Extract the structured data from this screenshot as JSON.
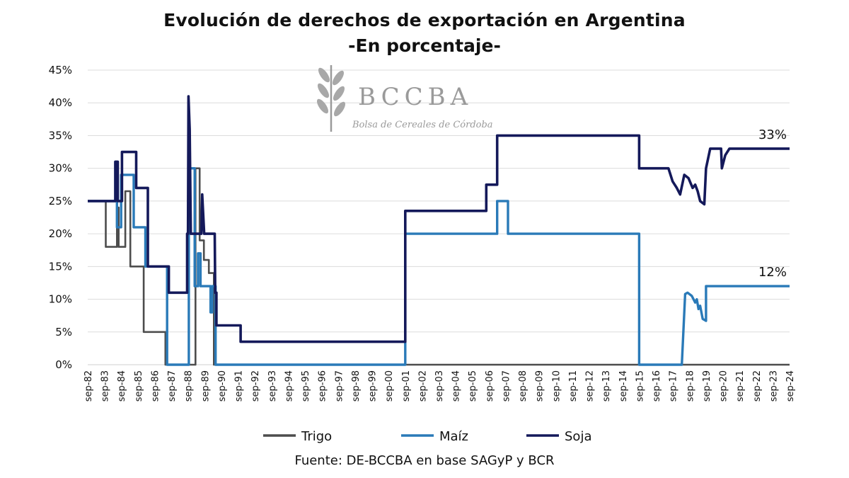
{
  "chart_data": {
    "type": "line",
    "title": "Evolución de derechos de exportación en Argentina",
    "subtitle": "-En porcentaje-",
    "source": "Fuente: DE-BCCBA en base SAGyP y BCR",
    "y_ticks": [
      "0%",
      "5%",
      "10%",
      "15%",
      "20%",
      "25%",
      "30%",
      "35%",
      "40%",
      "45%"
    ],
    "ylim": [
      0,
      45
    ],
    "xlim": [
      1982.75,
      2024.75
    ],
    "x_ticks": [
      "sep-82",
      "sep-83",
      "sep-84",
      "sep-85",
      "sep-86",
      "sep-87",
      "sep-88",
      "sep-89",
      "sep-90",
      "sep-91",
      "sep-92",
      "sep-93",
      "sep-94",
      "sep-95",
      "sep-96",
      "sep-97",
      "sep-98",
      "sep-99",
      "sep-00",
      "sep-01",
      "sep-02",
      "sep-03",
      "sep-04",
      "sep-05",
      "sep-06",
      "sep-07",
      "sep-08",
      "sep-09",
      "sep-10",
      "sep-11",
      "sep-12",
      "sep-13",
      "sep-14",
      "sep-15",
      "sep-16",
      "sep-17",
      "sep-18",
      "sep-19",
      "sep-20",
      "sep-21",
      "sep-22",
      "sep-23",
      "sep-24"
    ],
    "grid": true,
    "legend_position": "bottom",
    "annotations": [
      {
        "series": "Soja",
        "text": "33%"
      },
      {
        "series": "Maíz",
        "text": "12%"
      }
    ],
    "series": [
      {
        "name": "Trigo",
        "color": "#4d4d4d",
        "points": [
          [
            1982.75,
            25
          ],
          [
            1983.83,
            25
          ],
          [
            1983.83,
            18
          ],
          [
            1984.5,
            18
          ],
          [
            1984.5,
            24
          ],
          [
            1984.6,
            24
          ],
          [
            1984.6,
            18
          ],
          [
            1985.0,
            18
          ],
          [
            1985.0,
            26.5
          ],
          [
            1985.3,
            26.5
          ],
          [
            1985.3,
            15
          ],
          [
            1986.1,
            15
          ],
          [
            1986.1,
            5
          ],
          [
            1987.4,
            5
          ],
          [
            1987.4,
            0
          ],
          [
            1989.2,
            0
          ],
          [
            1989.2,
            30
          ],
          [
            1989.45,
            30
          ],
          [
            1989.45,
            19
          ],
          [
            1989.7,
            19
          ],
          [
            1989.7,
            16
          ],
          [
            1990.0,
            16
          ],
          [
            1990.0,
            14
          ],
          [
            1990.3,
            14
          ],
          [
            1990.3,
            0
          ],
          [
            2024.75,
            0
          ]
        ]
      },
      {
        "name": "Maíz",
        "color": "#2a7ab8",
        "points": [
          [
            1982.75,
            25
          ],
          [
            1984.4,
            25
          ],
          [
            1984.4,
            31
          ],
          [
            1984.5,
            31
          ],
          [
            1984.5,
            21
          ],
          [
            1984.75,
            21
          ],
          [
            1984.75,
            29
          ],
          [
            1985.5,
            29
          ],
          [
            1985.5,
            21
          ],
          [
            1986.2,
            21
          ],
          [
            1986.2,
            15
          ],
          [
            1987.5,
            15
          ],
          [
            1987.5,
            0
          ],
          [
            1988.8,
            0
          ],
          [
            1988.8,
            30
          ],
          [
            1989.15,
            30
          ],
          [
            1989.15,
            12
          ],
          [
            1989.35,
            12
          ],
          [
            1989.35,
            17
          ],
          [
            1989.5,
            17
          ],
          [
            1989.5,
            12
          ],
          [
            1990.1,
            12
          ],
          [
            1990.1,
            8
          ],
          [
            1990.2,
            8
          ],
          [
            1990.2,
            12
          ],
          [
            1990.4,
            12
          ],
          [
            1990.4,
            0
          ],
          [
            2001.75,
            0
          ],
          [
            2001.75,
            20
          ],
          [
            2007.25,
            20
          ],
          [
            2007.25,
            25
          ],
          [
            2007.9,
            25
          ],
          [
            2007.9,
            20
          ],
          [
            2015.75,
            20
          ],
          [
            2015.75,
            0
          ],
          [
            2018.3,
            0
          ],
          [
            2018.5,
            10.8
          ],
          [
            2018.65,
            11
          ],
          [
            2018.9,
            10.5
          ],
          [
            2019.1,
            9.5
          ],
          [
            2019.2,
            10
          ],
          [
            2019.3,
            8.5
          ],
          [
            2019.4,
            9
          ],
          [
            2019.55,
            7
          ],
          [
            2019.75,
            6.7
          ],
          [
            2019.75,
            12
          ],
          [
            2024.75,
            12
          ]
        ]
      },
      {
        "name": "Soja",
        "color": "#14195a",
        "points": [
          [
            1982.75,
            25
          ],
          [
            1984.4,
            25
          ],
          [
            1984.4,
            31
          ],
          [
            1984.55,
            31
          ],
          [
            1984.55,
            25
          ],
          [
            1984.8,
            25
          ],
          [
            1984.8,
            32.5
          ],
          [
            1985.65,
            32.5
          ],
          [
            1985.65,
            27
          ],
          [
            1986.35,
            27
          ],
          [
            1986.35,
            15
          ],
          [
            1987.6,
            15
          ],
          [
            1987.6,
            11
          ],
          [
            1988.7,
            11
          ],
          [
            1988.7,
            20
          ],
          [
            1988.75,
            20
          ],
          [
            1988.78,
            41
          ],
          [
            1988.85,
            36
          ],
          [
            1988.92,
            20
          ],
          [
            1989.55,
            20
          ],
          [
            1989.6,
            26
          ],
          [
            1989.72,
            20
          ],
          [
            1990.35,
            20
          ],
          [
            1990.38,
            11
          ],
          [
            1990.45,
            11
          ],
          [
            1990.45,
            6
          ],
          [
            1991.9,
            6
          ],
          [
            1991.9,
            3.5
          ],
          [
            2001.75,
            3.5
          ],
          [
            2001.75,
            23.5
          ],
          [
            2006.6,
            23.5
          ],
          [
            2006.6,
            27.5
          ],
          [
            2007.25,
            27.5
          ],
          [
            2007.25,
            35
          ],
          [
            2015.75,
            35
          ],
          [
            2015.75,
            30
          ],
          [
            2017.5,
            30
          ],
          [
            2017.75,
            28
          ],
          [
            2018.0,
            27
          ],
          [
            2018.2,
            26
          ],
          [
            2018.45,
            29
          ],
          [
            2018.7,
            28.5
          ],
          [
            2018.95,
            27
          ],
          [
            2019.1,
            27.5
          ],
          [
            2019.25,
            26.5
          ],
          [
            2019.4,
            25
          ],
          [
            2019.65,
            24.5
          ],
          [
            2019.75,
            30
          ],
          [
            2020.0,
            33
          ],
          [
            2020.65,
            33
          ],
          [
            2020.7,
            30
          ],
          [
            2020.9,
            32
          ],
          [
            2021.15,
            33
          ],
          [
            2024.75,
            33
          ]
        ]
      }
    ]
  },
  "watermark": {
    "name": "BCCBA",
    "tagline": "Bolsa de Cereales de Córdoba"
  }
}
